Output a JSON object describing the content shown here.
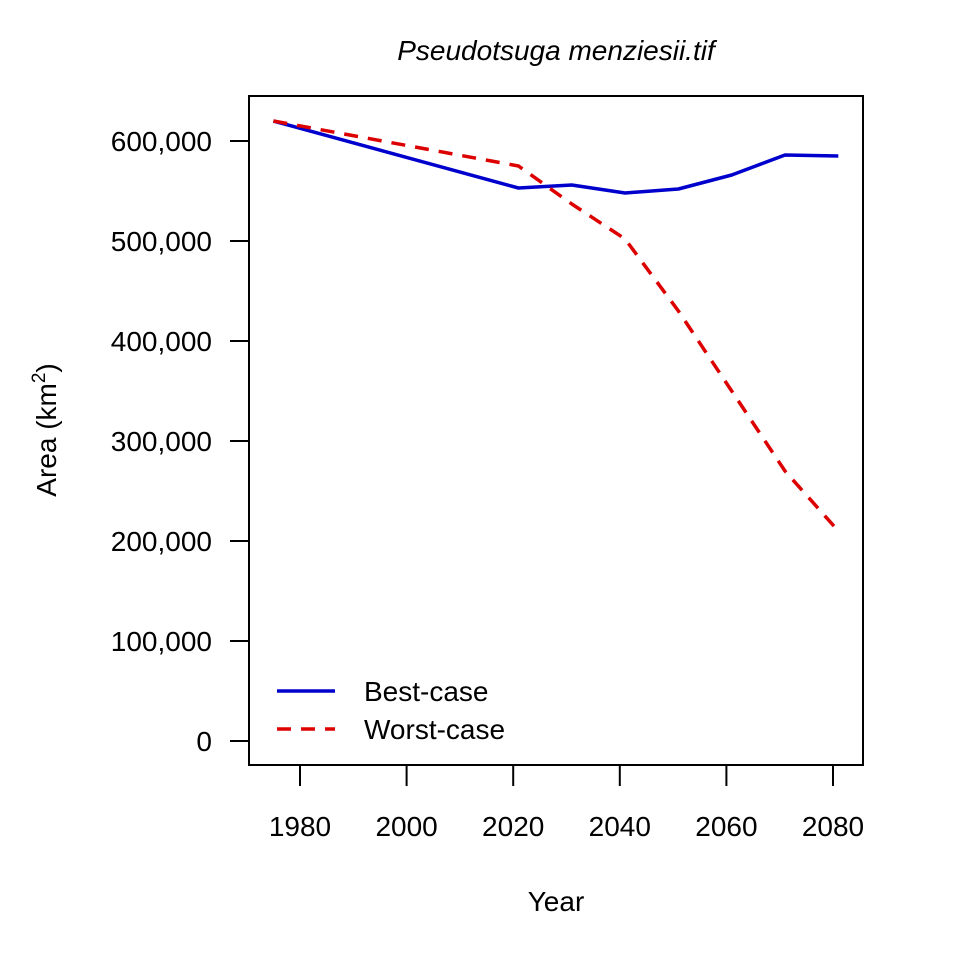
{
  "chart_data": {
    "type": "line",
    "title": "Pseudotsuga menziesii.tif",
    "xlabel": "Year",
    "ylabel_main": "Area (km",
    "ylabel_sup": "2",
    "ylabel_close": ")",
    "xlim": [
      1975,
      2081
    ],
    "ylim": [
      -20000,
      620000
    ],
    "x_ticks": [
      1980,
      2000,
      2020,
      2040,
      2060,
      2080
    ],
    "x_tick_labels": [
      "1980",
      "2000",
      "2020",
      "2040",
      "2060",
      "2080"
    ],
    "y_ticks": [
      0,
      100000,
      200000,
      300000,
      400000,
      500000,
      600000
    ],
    "y_tick_labels": [
      "0",
      "100,000",
      "200,000",
      "300,000",
      "400,000",
      "500,000",
      "600,000"
    ],
    "grid": false,
    "legend_position": "bottom-left",
    "series": [
      {
        "name": "Best-case",
        "color": "#0000CD",
        "style": "solid",
        "x": [
          1975,
          2021,
          2031,
          2041,
          2051,
          2061,
          2071,
          2081
        ],
        "y": [
          620000,
          553000,
          556000,
          548000,
          552000,
          566000,
          586000,
          585000
        ]
      },
      {
        "name": "Worst-case",
        "color": "#DD0000",
        "style": "dashed",
        "x": [
          1975,
          2021,
          2031,
          2041,
          2051,
          2061,
          2071,
          2081
        ],
        "y": [
          620000,
          575000,
          537000,
          502000,
          430000,
          350000,
          270000,
          210000
        ]
      }
    ]
  }
}
